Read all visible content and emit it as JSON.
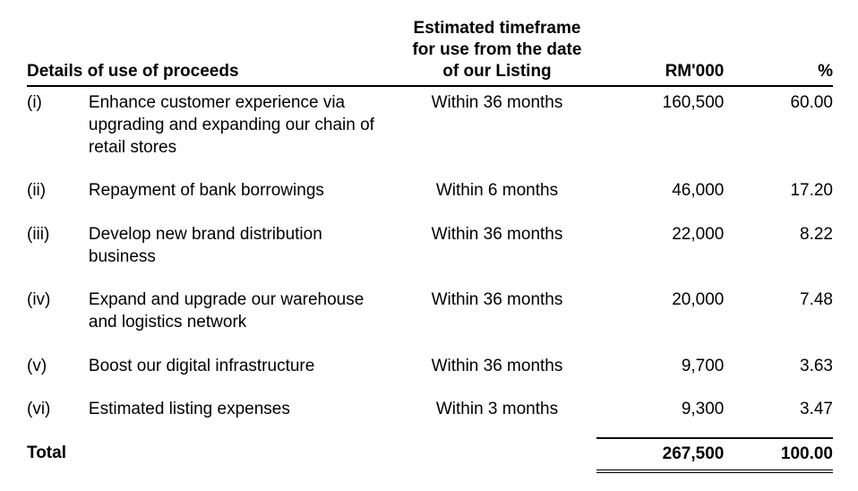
{
  "table": {
    "type": "table",
    "background_color": "#ffffff",
    "text_color": "#000000",
    "border_color": "#000000",
    "font_family": "Arial",
    "font_size_pt": 14,
    "headers": {
      "details": "Details of use of proceeds",
      "timeframe_l1": "Estimated timeframe",
      "timeframe_l2": "for use from the date",
      "timeframe_l3": "of our Listing",
      "amount": "RM'000",
      "pct": "%"
    },
    "rows": [
      {
        "num": "(i)",
        "desc": "Enhance customer experience via upgrading and expanding our chain of retail stores",
        "timeframe": "Within 36 months",
        "amount": "160,500",
        "pct": "60.00"
      },
      {
        "num": "(ii)",
        "desc": "Repayment of bank borrowings",
        "timeframe": "Within 6 months",
        "amount": "46,000",
        "pct": "17.20"
      },
      {
        "num": "(iii)",
        "desc": "Develop new brand distribution business",
        "timeframe": "Within 36 months",
        "amount": "22,000",
        "pct": "8.22"
      },
      {
        "num": "(iv)",
        "desc": "Expand and upgrade our warehouse and logistics network",
        "timeframe": "Within 36 months",
        "amount": "20,000",
        "pct": "7.48"
      },
      {
        "num": "(v)",
        "desc": "Boost our digital infrastructure",
        "timeframe": "Within 36 months",
        "amount": "9,700",
        "pct": "3.63"
      },
      {
        "num": "(vi)",
        "desc": "Estimated listing expenses",
        "timeframe": "Within 3 months",
        "amount": "9,300",
        "pct": "3.47"
      }
    ],
    "total": {
      "label": "Total",
      "amount": "267,500",
      "pct": "100.00"
    }
  }
}
